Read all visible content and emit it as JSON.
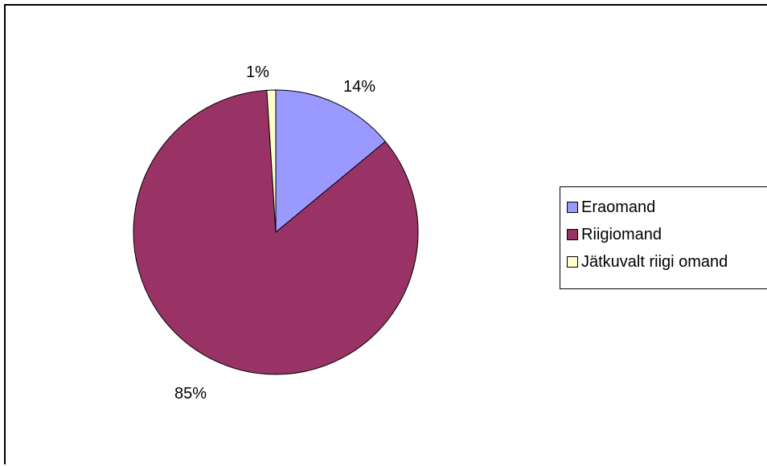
{
  "chart_data": {
    "type": "pie",
    "title": "",
    "categories": [
      "Eraomand",
      "Riigiomand",
      "Jätkuvalt riigi omand"
    ],
    "values": [
      14,
      85,
      1
    ],
    "value_labels": [
      "14%",
      "85%",
      "1%"
    ],
    "colors": [
      "#9999FF",
      "#993366",
      "#FFFFCC"
    ],
    "legend_position": "right"
  }
}
